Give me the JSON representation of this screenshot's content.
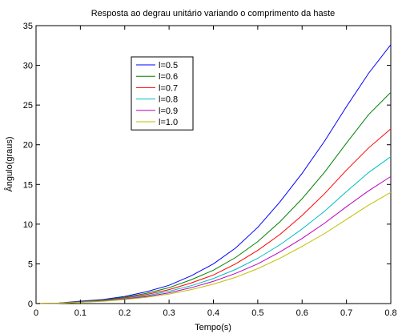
{
  "chart_data": {
    "type": "line",
    "title": "Resposta ao degrau unitário variando o comprimento da haste",
    "xlabel": "Tempo(s)",
    "ylabel": "Ângulo(graus)",
    "xlim": [
      0,
      0.8
    ],
    "ylim": [
      0,
      35
    ],
    "xticks": [
      "0",
      "0.1",
      "0.2",
      "0.3",
      "0.4",
      "0.5",
      "0.6",
      "0.7",
      "0.8"
    ],
    "yticks": [
      "0",
      "5",
      "10",
      "15",
      "20",
      "25",
      "30",
      "35"
    ],
    "grid": false,
    "legend_position": "top-left-inset",
    "x": [
      0,
      0.05,
      0.1,
      0.15,
      0.2,
      0.25,
      0.3,
      0.35,
      0.4,
      0.45,
      0.5,
      0.55,
      0.6,
      0.65,
      0.7,
      0.75,
      0.8
    ],
    "series": [
      {
        "name": "l=0.5",
        "color": "#0000ff",
        "values": [
          0,
          0.05,
          0.3,
          0.5,
          0.9,
          1.5,
          2.3,
          3.5,
          5.0,
          7.0,
          9.6,
          12.8,
          16.4,
          20.4,
          24.8,
          29.0,
          32.6
        ]
      },
      {
        "name": "l=0.6",
        "color": "#008000",
        "values": [
          0,
          0.05,
          0.25,
          0.45,
          0.8,
          1.3,
          2.0,
          3.0,
          4.2,
          5.8,
          7.8,
          10.3,
          13.2,
          16.5,
          20.2,
          23.8,
          26.6
        ]
      },
      {
        "name": "l=0.7",
        "color": "#ff0000",
        "values": [
          0,
          0.04,
          0.22,
          0.4,
          0.7,
          1.15,
          1.75,
          2.6,
          3.6,
          5.0,
          6.7,
          8.7,
          11.1,
          13.8,
          16.8,
          19.6,
          22.0
        ]
      },
      {
        "name": "l=0.8",
        "color": "#00bfbf",
        "values": [
          0,
          0.04,
          0.2,
          0.36,
          0.62,
          1.0,
          1.55,
          2.25,
          3.15,
          4.3,
          5.7,
          7.4,
          9.4,
          11.6,
          14.1,
          16.5,
          18.5
        ]
      },
      {
        "name": "l=0.9",
        "color": "#bf00bf",
        "values": [
          0,
          0.03,
          0.18,
          0.32,
          0.55,
          0.9,
          1.35,
          2.0,
          2.8,
          3.8,
          5.0,
          6.5,
          8.2,
          10.1,
          12.2,
          14.2,
          16.0
        ]
      },
      {
        "name": "l=1.0",
        "color": "#bfbf00",
        "values": [
          0,
          0.03,
          0.16,
          0.28,
          0.5,
          0.8,
          1.2,
          1.75,
          2.45,
          3.3,
          4.4,
          5.7,
          7.2,
          8.8,
          10.6,
          12.4,
          14.0
        ]
      }
    ]
  }
}
